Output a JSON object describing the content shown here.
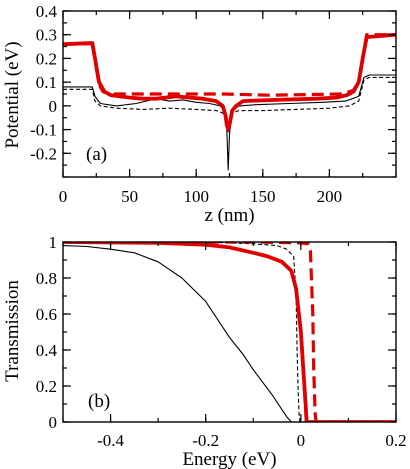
{
  "chart_data": [
    {
      "type": "line",
      "panel_label": "(a)",
      "xlabel": "z (nm)",
      "ylabel": "Potential (eV)",
      "xlim": [
        0,
        250
      ],
      "ylim": [
        -0.3,
        0.4
      ],
      "xticks": [
        0,
        50,
        100,
        150,
        200
      ],
      "yticks": [
        -0.2,
        -0.1,
        0,
        0.1,
        0.2,
        0.3,
        0.4
      ],
      "xtick_labels": [
        "0",
        "50",
        "100",
        "150",
        "200"
      ],
      "ytick_labels": [
        "-0.2",
        "-0.1",
        "0",
        "0.1",
        "0.2",
        "0.3",
        "0.4"
      ],
      "grid": false,
      "series": [
        {
          "style": "thin-dashed",
          "color": "#000000",
          "points": [
            [
              0,
              0.07
            ],
            [
              22,
              0.07
            ],
            [
              24,
              0.02
            ],
            [
              28,
              0.0
            ],
            [
              40,
              -0.01
            ],
            [
              60,
              -0.015
            ],
            [
              80,
              -0.01
            ],
            [
              100,
              -0.015
            ],
            [
              115,
              -0.02
            ],
            [
              120,
              -0.03
            ],
            [
              123,
              -0.06
            ],
            [
              124,
              -0.11
            ],
            [
              125,
              -0.07
            ],
            [
              127,
              -0.03
            ],
            [
              132,
              -0.02
            ],
            [
              150,
              -0.02
            ],
            [
              175,
              -0.015
            ],
            [
              200,
              -0.01
            ],
            [
              215,
              0.0
            ],
            [
              222,
              0.02
            ],
            [
              226,
              0.11
            ],
            [
              230,
              0.12
            ],
            [
              250,
              0.12
            ]
          ]
        },
        {
          "style": "thin-solid",
          "color": "#000000",
          "points": [
            [
              0,
              0.08
            ],
            [
              22,
              0.08
            ],
            [
              24,
              0.04
            ],
            [
              28,
              0.01
            ],
            [
              40,
              0.0
            ],
            [
              55,
              0.01
            ],
            [
              70,
              0.03
            ],
            [
              80,
              0.02
            ],
            [
              90,
              0.025
            ],
            [
              100,
              0.015
            ],
            [
              110,
              0.01
            ],
            [
              118,
              0.0
            ],
            [
              121,
              -0.02
            ],
            [
              123,
              -0.1
            ],
            [
              124,
              -0.27
            ],
            [
              125,
              -0.12
            ],
            [
              127,
              -0.02
            ],
            [
              132,
              0.0
            ],
            [
              145,
              0.005
            ],
            [
              170,
              0.01
            ],
            [
              195,
              0.015
            ],
            [
              212,
              0.02
            ],
            [
              222,
              0.04
            ],
            [
              226,
              0.12
            ],
            [
              230,
              0.13
            ],
            [
              250,
              0.13
            ]
          ]
        },
        {
          "style": "thick-solid",
          "color": "#e00000",
          "points": [
            [
              0,
              0.26
            ],
            [
              22,
              0.265
            ],
            [
              24,
              0.2
            ],
            [
              27,
              0.1
            ],
            [
              31,
              0.06
            ],
            [
              36,
              0.045
            ],
            [
              50,
              0.035
            ],
            [
              60,
              0.03
            ],
            [
              70,
              0.03
            ],
            [
              85,
              0.04
            ],
            [
              95,
              0.035
            ],
            [
              105,
              0.03
            ],
            [
              115,
              0.02
            ],
            [
              120,
              0.0
            ],
            [
              122,
              -0.04
            ],
            [
              123,
              -0.08
            ],
            [
              124,
              -0.1
            ],
            [
              125,
              -0.08
            ],
            [
              127,
              -0.02
            ],
            [
              130,
              0.0
            ],
            [
              135,
              0.02
            ],
            [
              160,
              0.025
            ],
            [
              190,
              0.03
            ],
            [
              205,
              0.035
            ],
            [
              213,
              0.045
            ],
            [
              218,
              0.06
            ],
            [
              222,
              0.1
            ],
            [
              225,
              0.2
            ],
            [
              228,
              0.29
            ],
            [
              250,
              0.3
            ]
          ]
        },
        {
          "style": "thick-dashed",
          "color": "#e00000",
          "points": [
            [
              0,
              0.26
            ],
            [
              22,
              0.262
            ],
            [
              24,
              0.2
            ],
            [
              27,
              0.09
            ],
            [
              30,
              0.06
            ],
            [
              35,
              0.05
            ],
            [
              120,
              0.05
            ],
            [
              155,
              0.045
            ],
            [
              210,
              0.05
            ],
            [
              218,
              0.065
            ],
            [
              222,
              0.1
            ],
            [
              225,
              0.2
            ],
            [
              228,
              0.3
            ],
            [
              250,
              0.3
            ]
          ]
        }
      ]
    },
    {
      "type": "line",
      "panel_label": "(b)",
      "xlabel": "Energy (eV)",
      "ylabel": "Transmission",
      "xlim": [
        -0.5,
        0.2
      ],
      "ylim": [
        0,
        1
      ],
      "xticks": [
        -0.4,
        -0.2,
        0,
        0.2
      ],
      "yticks": [
        0,
        0.2,
        0.4,
        0.6,
        0.8,
        1
      ],
      "xtick_labels": [
        "-0.4",
        "-0.2",
        "0",
        "0.2"
      ],
      "ytick_labels": [
        "0",
        "0.2",
        "0.4",
        "0.6",
        "0.8",
        "1"
      ],
      "grid": false,
      "series": [
        {
          "style": "thin-solid",
          "color": "#000000",
          "points": [
            [
              -0.5,
              0.98
            ],
            [
              -0.45,
              0.975
            ],
            [
              -0.4,
              0.96
            ],
            [
              -0.35,
              0.94
            ],
            [
              -0.3,
              0.89
            ],
            [
              -0.25,
              0.8
            ],
            [
              -0.2,
              0.67
            ],
            [
              -0.15,
              0.47
            ],
            [
              -0.12,
              0.37
            ],
            [
              -0.1,
              0.29
            ],
            [
              -0.08,
              0.22
            ],
            [
              -0.06,
              0.15
            ],
            [
              -0.04,
              0.07
            ],
            [
              -0.03,
              0.03
            ],
            [
              -0.02,
              0.0
            ],
            [
              0.2,
              0.0
            ]
          ]
        },
        {
          "style": "thin-dashed",
          "color": "#000000",
          "points": [
            [
              -0.5,
              1.0
            ],
            [
              -0.2,
              1.0
            ],
            [
              -0.1,
              0.99
            ],
            [
              -0.05,
              0.98
            ],
            [
              -0.03,
              0.96
            ],
            [
              -0.015,
              0.92
            ],
            [
              -0.01,
              0.7
            ],
            [
              -0.008,
              0.4
            ],
            [
              -0.006,
              0.2
            ],
            [
              -0.004,
              0.05
            ],
            [
              -0.002,
              0.0
            ],
            [
              0.2,
              0.0
            ]
          ]
        },
        {
          "style": "thick-solid",
          "color": "#e00000",
          "points": [
            [
              -0.5,
              1.0
            ],
            [
              -0.3,
              0.995
            ],
            [
              -0.2,
              0.985
            ],
            [
              -0.15,
              0.97
            ],
            [
              -0.1,
              0.94
            ],
            [
              -0.07,
              0.92
            ],
            [
              -0.04,
              0.89
            ],
            [
              -0.02,
              0.84
            ],
            [
              -0.01,
              0.74
            ],
            [
              0.0,
              0.5
            ],
            [
              0.005,
              0.3
            ],
            [
              0.01,
              0.1
            ],
            [
              0.012,
              0.0
            ],
            [
              0.2,
              0.0
            ]
          ]
        },
        {
          "style": "thick-dashed",
          "color": "#e00000",
          "points": [
            [
              -0.5,
              1.0
            ],
            [
              -0.1,
              1.0
            ],
            [
              0.0,
              0.995
            ],
            [
              0.015,
              0.99
            ],
            [
              0.02,
              0.95
            ],
            [
              0.025,
              0.6
            ],
            [
              0.027,
              0.3
            ],
            [
              0.03,
              0.05
            ],
            [
              0.032,
              0.0
            ],
            [
              0.2,
              0.0
            ]
          ]
        }
      ]
    }
  ]
}
